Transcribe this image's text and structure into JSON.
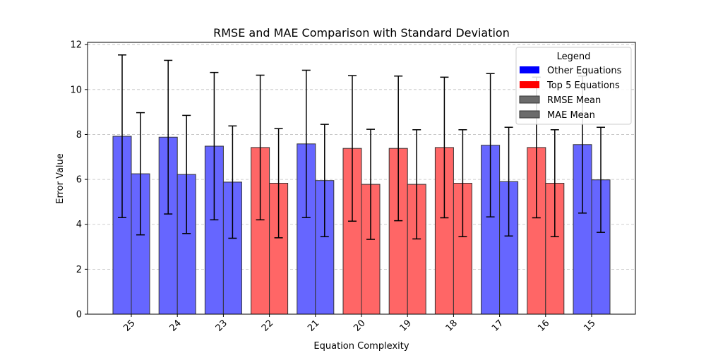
{
  "chart_data": {
    "type": "bar",
    "title": "RMSE and MAE Comparison with Standard Deviation",
    "xlabel": "Equation Complexity",
    "ylabel": "Error Value",
    "ylim": [
      0,
      12.1
    ],
    "yticks": [
      0,
      2,
      4,
      6,
      8,
      10,
      12
    ],
    "grid": "y-dashed",
    "categories": [
      "25",
      "24",
      "23",
      "22",
      "21",
      "20",
      "19",
      "18",
      "17",
      "16",
      "15"
    ],
    "top5": [
      false,
      false,
      false,
      true,
      false,
      true,
      true,
      true,
      false,
      true,
      false
    ],
    "series": [
      {
        "name": "RMSE Mean",
        "values": [
          7.92,
          7.88,
          7.48,
          7.42,
          7.58,
          7.38,
          7.38,
          7.42,
          7.52,
          7.42,
          7.55
        ],
        "std": [
          3.62,
          3.42,
          3.28,
          3.22,
          3.28,
          3.24,
          3.22,
          3.13,
          3.19,
          3.13,
          3.05
        ]
      },
      {
        "name": "MAE Mean",
        "values": [
          6.25,
          6.22,
          5.88,
          5.83,
          5.95,
          5.78,
          5.78,
          5.83,
          5.9,
          5.83,
          5.98
        ],
        "std": [
          2.72,
          2.63,
          2.5,
          2.43,
          2.5,
          2.45,
          2.43,
          2.38,
          2.42,
          2.38,
          2.34
        ]
      }
    ],
    "colors": {
      "other": "#6666ff",
      "top5": "#ff6666",
      "other_legend": "#0000ff",
      "top5_legend": "#ff0000",
      "mean_legend": "#6b6b6b",
      "edge": "#333333"
    },
    "legend": {
      "title": "Legend",
      "placement": "top-right",
      "entries": [
        "Other Equations",
        "Top 5 Equations",
        "RMSE Mean",
        "MAE Mean"
      ]
    }
  }
}
